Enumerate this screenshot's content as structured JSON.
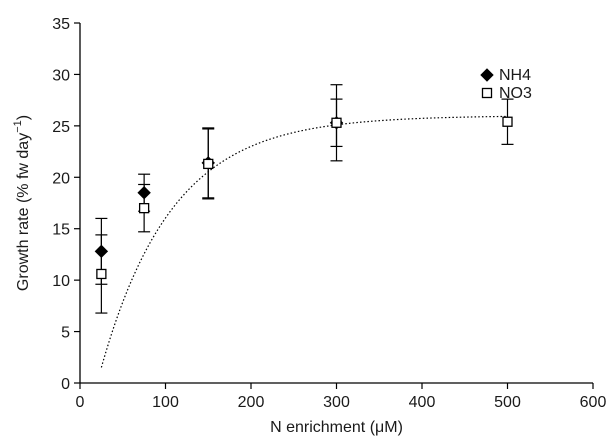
{
  "chart_data": {
    "type": "scatter",
    "xlabel": "N enrichment (μM)",
    "ylabel_main": "Growth rate (% fw day",
    "ylabel_sup": "−1",
    "ylabel_close": ")",
    "xlim": [
      0,
      600
    ],
    "ylim": [
      0,
      35
    ],
    "xticks": [
      "0",
      "100",
      "200",
      "300",
      "400",
      "500",
      "600"
    ],
    "yticks": [
      "0",
      "5",
      "10",
      "15",
      "20",
      "25",
      "30",
      "35"
    ],
    "grid": false,
    "legend_position": "top-right",
    "series": [
      {
        "name": "NH4",
        "marker": "filled-diamond",
        "color": "#000000",
        "points": [
          {
            "x": 25,
            "y": 12.8,
            "err": 3.2
          },
          {
            "x": 75,
            "y": 18.5,
            "err": 1.8
          },
          {
            "x": 150,
            "y": 21.4,
            "err": 3.4
          },
          {
            "x": 300,
            "y": 25.3,
            "err": 3.7
          }
        ]
      },
      {
        "name": "NO3",
        "marker": "open-square",
        "color": "#000000",
        "points": [
          {
            "x": 25,
            "y": 10.6,
            "err": 3.8
          },
          {
            "x": 75,
            "y": 17.0,
            "err": 2.3
          },
          {
            "x": 150,
            "y": 21.3,
            "err": 3.4
          },
          {
            "x": 300,
            "y": 25.3,
            "err": 2.3
          },
          {
            "x": 500,
            "y": 25.4,
            "err": 2.2
          }
        ]
      }
    ],
    "fit": {
      "style": "dotted",
      "model": "saturating",
      "vmax": 26.0,
      "k": 0.012,
      "x0": 20,
      "x_range": [
        25,
        500
      ]
    }
  }
}
